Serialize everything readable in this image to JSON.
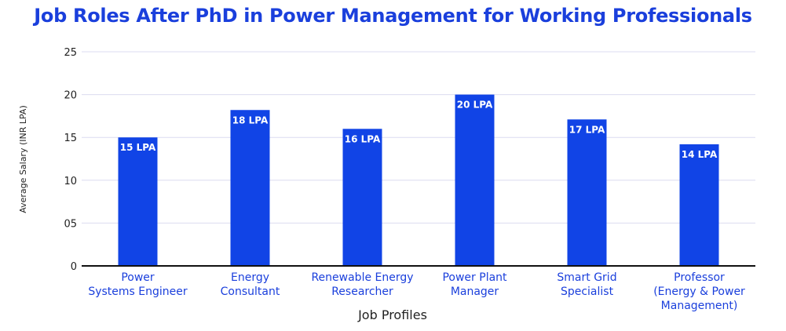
{
  "chart_data": {
    "type": "bar",
    "title": "Job Roles After PhD in Power Management for Working Professionals",
    "xlabel": "Job Profiles",
    "ylabel": "Average Salary (INR LPA)",
    "categories": [
      [
        "Power",
        "Systems Engineer"
      ],
      [
        "Energy",
        "Consultant"
      ],
      [
        "Renewable Energy",
        "Researcher"
      ],
      [
        "Power Plant",
        "Manager"
      ],
      [
        "Smart Grid",
        "Specialist"
      ],
      [
        "Professor",
        "(Energy & Power",
        "Management)"
      ]
    ],
    "values": [
      15,
      18.2,
      16,
      20,
      17.1,
      14.2
    ],
    "data_labels": [
      "15 LPA",
      "18 LPA",
      "16 LPA",
      "20 LPA",
      "17 LPA",
      "14 LPA"
    ],
    "y_ticks": [
      {
        "value": 0,
        "label": "0"
      },
      {
        "value": 5,
        "label": "05"
      },
      {
        "value": 10,
        "label": "10"
      },
      {
        "value": 15,
        "label": "15"
      },
      {
        "value": 20,
        "label": "20"
      },
      {
        "value": 25,
        "label": "25"
      }
    ],
    "ylim": [
      0,
      25
    ],
    "grid": true,
    "legend": "none",
    "colors": {
      "bar": "#1144e6",
      "title": "#1a3fdc",
      "category_text": "#1a3fdc",
      "grid": "#dcdcf0",
      "axis": "#111111"
    }
  }
}
